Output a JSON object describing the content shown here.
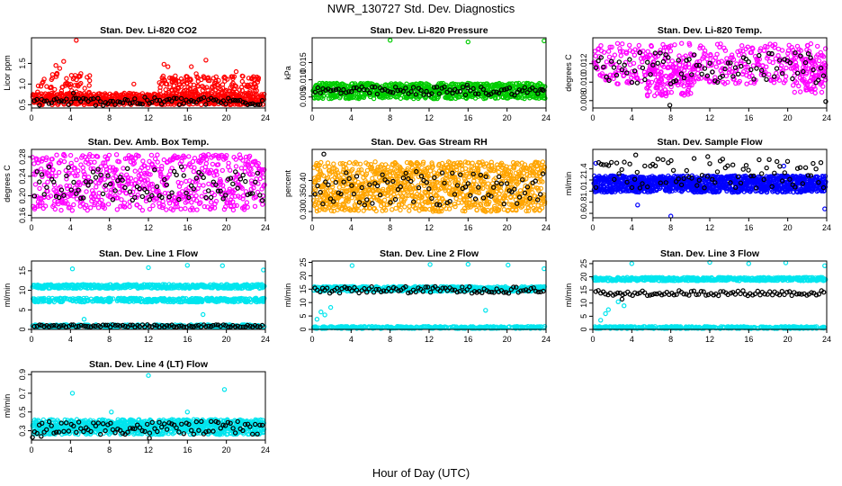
{
  "figure": {
    "title": "NWR_130727  Std. Dev. Diagnostics",
    "xlabel": "Hour of Day (UTC)"
  },
  "chart_data": [
    {
      "type": "scatter",
      "title": "Stan. Dev. Li-820 CO2",
      "ylabel": "Licor ppm",
      "xlim": [
        0,
        24
      ],
      "ylim": [
        0.42,
        2.12
      ],
      "xticks": [
        0,
        4,
        8,
        12,
        16,
        20,
        24
      ],
      "yticks": [
        {
          "v": 0.5,
          "t": "0.5"
        },
        {
          "v": 1.0,
          "t": "1.0"
        },
        {
          "v": 1.5,
          "t": "1.5"
        }
      ],
      "grid": false,
      "legend": "none",
      "series": [
        {
          "color": "#ff0000",
          "band": [
            0.5,
            0.78
          ],
          "n": 700,
          "extra": [
            {
              "x": [
                0.6,
                6.0
              ],
              "y": [
                0.8,
                1.3
              ],
              "n": 50
            },
            {
              "x": [
                13.0,
                23.5
              ],
              "y": [
                0.8,
                1.2
              ],
              "n": 160
            }
          ],
          "outliers": [
            [
              4.6,
              2.06
            ],
            [
              2.5,
              1.45
            ],
            [
              2.9,
              1.38
            ],
            [
              3.3,
              1.55
            ],
            [
              1.3,
              1.12
            ],
            [
              13.6,
              1.48
            ],
            [
              14.0,
              1.42
            ],
            [
              16.4,
              1.42
            ],
            [
              16.9,
              1.25
            ],
            [
              17.9,
              1.58
            ],
            [
              21.0,
              1.3
            ],
            [
              10.5,
              1.0
            ]
          ]
        },
        {
          "color": "#000000",
          "band": [
            0.48,
            0.68
          ],
          "n": 95,
          "extra": [],
          "outliers": [
            [
              4.3,
              0.78
            ]
          ]
        }
      ]
    },
    {
      "type": "scatter",
      "title": "Stan. Dev. Li-820 Pressure",
      "ylabel": "kPa",
      "xlim": [
        0,
        24
      ],
      "ylim": [
        0.0018,
        0.0222
      ],
      "xticks": [
        0,
        4,
        8,
        12,
        16,
        20,
        24
      ],
      "yticks": [
        {
          "v": 0.005,
          "t": "0.005"
        },
        {
          "v": 0.01,
          "t": "0.010"
        },
        {
          "v": 0.015,
          "t": "0.015"
        }
      ],
      "grid": false,
      "legend": "none",
      "series": [
        {
          "color": "#00cc00",
          "band": [
            0.0045,
            0.009
          ],
          "n": 800,
          "extra": [],
          "outliers": [
            [
              8.0,
              0.0215
            ],
            [
              16.0,
              0.021
            ],
            [
              23.8,
              0.0213
            ]
          ]
        },
        {
          "color": "#000000",
          "band": [
            0.0055,
            0.008
          ],
          "n": 90,
          "extra": [],
          "outliers": [
            [
              15.9,
              0.0085
            ],
            [
              23.6,
              0.0072
            ]
          ]
        }
      ]
    },
    {
      "type": "scatter",
      "title": "Stan. Dev. Li-820 Temp.",
      "ylabel": "degrees C",
      "xlim": [
        0,
        24
      ],
      "ylim": [
        0.0072,
        0.0148
      ],
      "xticks": [
        0,
        4,
        8,
        12,
        16,
        20,
        24
      ],
      "yticks": [
        {
          "v": 0.008,
          "t": "0.008"
        },
        {
          "v": 0.01,
          "t": "0.010"
        },
        {
          "v": 0.012,
          "t": "0.012"
        }
      ],
      "grid": false,
      "legend": "none",
      "series": [
        {
          "color": "#ff00ff",
          "band": [
            0.0098,
            0.0142
          ],
          "n": 420,
          "extra": [
            {
              "x": [
                5.5,
                10.5
              ],
              "y": [
                0.0085,
                0.0118
              ],
              "n": 110
            },
            {
              "x": [
                20.5,
                24.0
              ],
              "y": [
                0.0088,
                0.0125
              ],
              "n": 70
            }
          ],
          "outliers": []
        },
        {
          "color": "#000000",
          "band": [
            0.0098,
            0.0132
          ],
          "n": 90,
          "extra": [],
          "outliers": [
            [
              7.9,
              0.0075
            ],
            [
              23.9,
              0.0079
            ]
          ]
        }
      ]
    },
    {
      "type": "scatter",
      "title": "Stan. Dev. Amb. Box Temp.",
      "ylabel": "degrees C",
      "xlim": [
        0,
        24
      ],
      "ylim": [
        0.155,
        0.295
      ],
      "xticks": [
        0,
        4,
        8,
        12,
        16,
        20,
        24
      ],
      "yticks": [
        {
          "v": 0.16,
          "t": "0.16"
        },
        {
          "v": 0.2,
          "t": "0.20"
        },
        {
          "v": 0.24,
          "t": "0.24"
        },
        {
          "v": 0.28,
          "t": "0.28"
        }
      ],
      "grid": false,
      "legend": "none",
      "series": [
        {
          "color": "#ff00ff",
          "band": [
            0.17,
            0.285
          ],
          "n": 650,
          "extra": [],
          "outliers": []
        },
        {
          "color": "#000000",
          "band": [
            0.19,
            0.26
          ],
          "n": 95,
          "extra": [],
          "outliers": []
        }
      ]
    },
    {
      "type": "scatter",
      "title": "Stan. Dev. Gas Stream RH",
      "ylabel": "percent",
      "xlim": [
        0,
        24
      ],
      "ylim": [
        0.28,
        0.5
      ],
      "xticks": [
        0,
        4,
        8,
        12,
        16,
        20,
        24
      ],
      "yticks": [
        {
          "v": 0.3,
          "t": "0.30"
        },
        {
          "v": 0.35,
          "t": "0.35"
        },
        {
          "v": 0.4,
          "t": "0.40"
        }
      ],
      "grid": false,
      "legend": "none",
      "series": [
        {
          "color": "#ffa500",
          "band": [
            0.3,
            0.46
          ],
          "n": 1100,
          "extra": [],
          "outliers": []
        },
        {
          "color": "#000000",
          "band": [
            0.32,
            0.43
          ],
          "n": 90,
          "extra": [],
          "outliers": [
            [
              1.2,
              0.485
            ]
          ]
        }
      ]
    },
    {
      "type": "scatter",
      "title": "Stan. Dev. Sample Flow",
      "ylabel": "ml/min",
      "xlim": [
        0,
        24
      ],
      "ylim": [
        0.52,
        1.75
      ],
      "xticks": [
        0,
        4,
        8,
        12,
        16,
        20,
        24
      ],
      "yticks": [
        {
          "v": 0.6,
          "t": "0.6"
        },
        {
          "v": 0.8,
          "t": "0.8"
        },
        {
          "v": 1.0,
          "t": "1.0"
        },
        {
          "v": 1.2,
          "t": "1.2"
        },
        {
          "v": 1.4,
          "t": "1.4"
        }
      ],
      "grid": false,
      "legend": "none",
      "series": [
        {
          "color": "#0000ff",
          "band": [
            0.98,
            1.28
          ],
          "n": 1100,
          "extra": [],
          "outliers": [
            [
              0.3,
              1.5
            ],
            [
              8.0,
              0.55
            ],
            [
              23.8,
              0.68
            ],
            [
              4.6,
              0.75
            ],
            [
              19.6,
              1.45
            ]
          ]
        },
        {
          "color": "#000000",
          "band": [
            1.05,
            1.6
          ],
          "n": 90,
          "extra": [],
          "outliers": [
            [
              4.4,
              1.65
            ],
            [
              11.8,
              1.62
            ]
          ]
        }
      ]
    },
    {
      "type": "scatter",
      "title": "Stan. Dev. Line 1 Flow",
      "ylabel": "ml/min",
      "xlim": [
        0,
        24
      ],
      "ylim": [
        0,
        17.5
      ],
      "xticks": [
        0,
        4,
        8,
        12,
        16,
        20,
        24
      ],
      "yticks": [
        {
          "v": 0,
          "t": "0"
        },
        {
          "v": 5,
          "t": "5"
        },
        {
          "v": 10,
          "t": "10"
        },
        {
          "v": 15,
          "t": "15"
        }
      ],
      "grid": false,
      "legend": "none",
      "series": [
        {
          "color": "#00e5ee",
          "band": [
            10.5,
            11.5
          ],
          "n": 400,
          "extra": [
            {
              "x": [
                0,
                24
              ],
              "y": [
                7.0,
                8.0
              ],
              "n": 400
            },
            {
              "x": [
                0,
                24
              ],
              "y": [
                0.5,
                1.2
              ],
              "n": 300
            }
          ],
          "outliers": [
            [
              4.2,
              15.5
            ],
            [
              12.0,
              15.8
            ],
            [
              16.0,
              16.4
            ],
            [
              19.6,
              16.3
            ],
            [
              23.8,
              15.2
            ],
            [
              17.6,
              3.8
            ],
            [
              5.4,
              2.6
            ]
          ]
        },
        {
          "color": "#000000",
          "band": [
            0.6,
            1.2
          ],
          "n": 95,
          "extra": [],
          "outliers": []
        }
      ]
    },
    {
      "type": "scatter",
      "title": "Stan. Dev. Line 2 Flow",
      "ylabel": "ml/min",
      "xlim": [
        0,
        24
      ],
      "ylim": [
        0,
        25.5
      ],
      "xticks": [
        0,
        4,
        8,
        12,
        16,
        20,
        24
      ],
      "yticks": [
        {
          "v": 0,
          "t": "0"
        },
        {
          "v": 5,
          "t": "5"
        },
        {
          "v": 10,
          "t": "10"
        },
        {
          "v": 15,
          "t": "15"
        },
        {
          "v": 20,
          "t": "20"
        },
        {
          "v": 25,
          "t": "25"
        }
      ],
      "grid": false,
      "legend": "none",
      "series": [
        {
          "color": "#00e5ee",
          "band": [
            14.2,
            16.0
          ],
          "n": 500,
          "extra": [
            {
              "x": [
                0,
                24
              ],
              "y": [
                0.3,
                1.1
              ],
              "n": 350
            }
          ],
          "outliers": [
            [
              4.1,
              23.8
            ],
            [
              12.1,
              24.2
            ],
            [
              16.0,
              24.3
            ],
            [
              20.1,
              24.0
            ],
            [
              23.8,
              22.6
            ],
            [
              0.9,
              6.5
            ],
            [
              1.3,
              5.4
            ],
            [
              1.9,
              8.2
            ],
            [
              0.5,
              3.8
            ],
            [
              17.8,
              7.1
            ]
          ]
        },
        {
          "color": "#000000",
          "band": [
            13.5,
            16.0
          ],
          "n": 95,
          "extra": [],
          "outliers": []
        }
      ]
    },
    {
      "type": "scatter",
      "title": "Stan. Dev. Line 3 Flow",
      "ylabel": "ml/min",
      "xlim": [
        0,
        24
      ],
      "ylim": [
        0,
        26
      ],
      "xticks": [
        0,
        4,
        8,
        12,
        16,
        20,
        24
      ],
      "yticks": [
        {
          "v": 0,
          "t": "0"
        },
        {
          "v": 5,
          "t": "5"
        },
        {
          "v": 10,
          "t": "10"
        },
        {
          "v": 15,
          "t": "15"
        },
        {
          "v": 20,
          "t": "20"
        },
        {
          "v": 25,
          "t": "25"
        }
      ],
      "grid": false,
      "legend": "none",
      "series": [
        {
          "color": "#00e5ee",
          "band": [
            18.5,
            19.8
          ],
          "n": 400,
          "extra": [
            {
              "x": [
                0,
                24
              ],
              "y": [
                0.3,
                1.1
              ],
              "n": 350
            }
          ],
          "outliers": [
            [
              4.0,
              25.0
            ],
            [
              12.0,
              25.5
            ],
            [
              16.0,
              25.0
            ],
            [
              19.8,
              25.3
            ],
            [
              23.8,
              24.2
            ],
            [
              0.8,
              3.5
            ],
            [
              1.3,
              6.0
            ],
            [
              1.6,
              7.5
            ],
            [
              2.6,
              10.5
            ],
            [
              3.2,
              9.0
            ]
          ]
        },
        {
          "color": "#000000",
          "band": [
            12.8,
            14.8
          ],
          "n": 95,
          "extra": [],
          "outliers": [
            [
              3.0,
              11.5
            ]
          ]
        }
      ]
    },
    {
      "type": "scatter",
      "title": "Stan. Dev. Line 4 (LT) Flow",
      "ylabel": "ml/min",
      "xlim": [
        0,
        24
      ],
      "ylim": [
        0.2,
        0.93
      ],
      "xticks": [
        0,
        4,
        8,
        12,
        16,
        20,
        24
      ],
      "yticks": [
        {
          "v": 0.3,
          "t": "0.3"
        },
        {
          "v": 0.5,
          "t": "0.5"
        },
        {
          "v": 0.7,
          "t": "0.7"
        },
        {
          "v": 0.9,
          "t": "0.9"
        }
      ],
      "grid": false,
      "legend": "none",
      "series": [
        {
          "color": "#00e5ee",
          "band": [
            0.26,
            0.42
          ],
          "n": 850,
          "extra": [],
          "outliers": [
            [
              4.2,
              0.7
            ],
            [
              12.0,
              0.89
            ],
            [
              19.8,
              0.74
            ],
            [
              8.2,
              0.5
            ],
            [
              16.0,
              0.5
            ]
          ]
        },
        {
          "color": "#000000",
          "band": [
            0.26,
            0.4
          ],
          "n": 95,
          "extra": [],
          "outliers": [
            [
              24.0,
              0.45
            ],
            [
              0.1,
              0.23
            ],
            [
              1.0,
              0.24
            ],
            [
              12.1,
              0.22
            ]
          ]
        }
      ]
    }
  ]
}
